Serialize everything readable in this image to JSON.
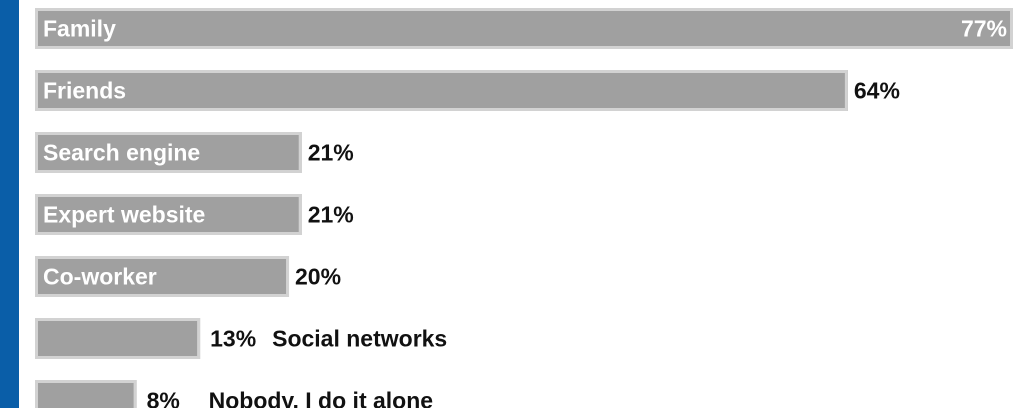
{
  "chart_data": {
    "type": "bar",
    "orientation": "horizontal",
    "categories": [
      "Family",
      "Friends",
      "Search engine",
      "Expert website",
      "Co-worker",
      "Social networks",
      "Nobody, I do it alone"
    ],
    "values": [
      77,
      64,
      21,
      21,
      20,
      13,
      8
    ],
    "value_labels": [
      "77%",
      "64%",
      "21%",
      "21%",
      "20%",
      "13%",
      "8%"
    ],
    "category_label_position": [
      "inside",
      "inside",
      "inside",
      "inside",
      "inside",
      "outside",
      "outside"
    ],
    "xlim": [
      0,
      77
    ],
    "unit": "%",
    "grid": false,
    "legend": "none",
    "colors": {
      "bar": "#a0a0a0",
      "bar_edge": "#d2d2d2",
      "accent": "#0a5ea8",
      "label_inside": "#ffffff",
      "label_outside": "#111111"
    }
  }
}
